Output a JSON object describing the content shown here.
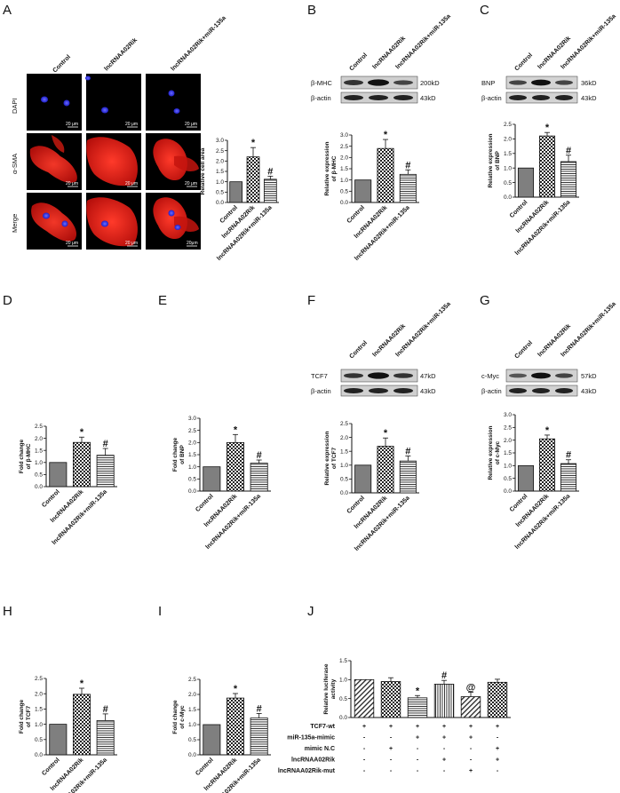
{
  "panels": {
    "A": "A",
    "B": "B",
    "C": "C",
    "D": "D",
    "E": "E",
    "F": "F",
    "G": "G",
    "H": "H",
    "I": "I",
    "J": "J"
  },
  "groups": [
    "Control",
    "lncRNAA02Rik",
    "lncRNAA02Rik+miR-135a"
  ],
  "micro": {
    "rows": [
      "DAPI",
      "α-SMA",
      "Merge"
    ],
    "scale_bar": "20 μm",
    "scale_bar_alt": "20μm"
  },
  "blots": {
    "B": {
      "target": "β-MHC",
      "target_kd": "200kD",
      "actin": "β-actin",
      "actin_kd": "43kD"
    },
    "C": {
      "target": "BNP",
      "target_kd": "36kD",
      "actin": "β-actin",
      "actin_kd": "43kD"
    },
    "F": {
      "target": "TCF7",
      "target_kd": "47kD",
      "actin": "β-actin",
      "actin_kd": "43kD"
    },
    "G": {
      "target": "c-Myc",
      "target_kd": "57kD",
      "actin": "β-actin",
      "actin_kd": "43kD"
    }
  },
  "chart_data": [
    {
      "panel": "A",
      "type": "bar",
      "categories": [
        "Control",
        "lncRNAA02Rik",
        "lncRNAA02Rik+miR-135a"
      ],
      "values": [
        1.0,
        2.2,
        1.12
      ],
      "errors": [
        0,
        0.45,
        0.15
      ],
      "ylabel": "Relative cell area",
      "ylim": [
        0,
        3.0
      ],
      "yticks": [
        "0.0",
        "0.5",
        "1.0",
        "1.5",
        "2.0",
        "2.5",
        "3.0"
      ],
      "marks": [
        "",
        "*",
        "#"
      ]
    },
    {
      "panel": "B",
      "type": "bar",
      "categories": [
        "Control",
        "lncRNAA02Rik",
        "lncRNAA02Rik+miR-135a"
      ],
      "values": [
        1.0,
        2.4,
        1.25
      ],
      "errors": [
        0,
        0.4,
        0.2
      ],
      "ylabel": "Relative expression of β-MHC",
      "ylim": [
        0,
        3.0
      ],
      "yticks": [
        "0.0",
        "0.5",
        "1.0",
        "1.5",
        "2.0",
        "2.5",
        "3.0"
      ],
      "marks": [
        "",
        "*",
        "#"
      ]
    },
    {
      "panel": "C",
      "type": "bar",
      "categories": [
        "Control",
        "lncRNAA02Rik",
        "lncRNAA02Rik+miR-135a"
      ],
      "values": [
        1.0,
        2.1,
        1.22
      ],
      "errors": [
        0,
        0.12,
        0.22
      ],
      "ylabel": "Relative expression of BNP",
      "ylim": [
        0,
        2.5
      ],
      "yticks": [
        "0.0",
        "0.5",
        "1.0",
        "1.5",
        "2.0",
        "2.5"
      ],
      "marks": [
        "",
        "*",
        "#"
      ]
    },
    {
      "panel": "D",
      "type": "bar",
      "categories": [
        "Control",
        "lncRNAA02Rik",
        "lncRNAA02Rik+miR-135a"
      ],
      "values": [
        1.0,
        1.83,
        1.3
      ],
      "errors": [
        0,
        0.22,
        0.28
      ],
      "ylabel": "Fold change of β-MHC",
      "ylim": [
        0,
        2.5
      ],
      "yticks": [
        "0.0",
        "0.5",
        "1.0",
        "1.5",
        "2.0",
        "2.5"
      ],
      "marks": [
        "",
        "*",
        "#"
      ]
    },
    {
      "panel": "E",
      "type": "bar",
      "categories": [
        "Control",
        "lncRNAA02Rik",
        "lncRNAA02Rik+miR-135a"
      ],
      "values": [
        1.0,
        2.0,
        1.15
      ],
      "errors": [
        0,
        0.33,
        0.13
      ],
      "ylabel": "Fold change of BNP",
      "ylim": [
        0,
        3.0
      ],
      "yticks": [
        "0.0",
        "0.5",
        "1.0",
        "1.5",
        "2.0",
        "2.5",
        "3.0"
      ],
      "marks": [
        "",
        "*",
        "#"
      ]
    },
    {
      "panel": "F",
      "type": "bar",
      "categories": [
        "Control",
        "lncRNAA02Rik",
        "lncRNAA02Rik+miR-135a"
      ],
      "values": [
        1.0,
        1.68,
        1.15
      ],
      "errors": [
        0,
        0.3,
        0.18
      ],
      "ylabel": "Relative expression of TCF7",
      "ylim": [
        0,
        2.5
      ],
      "yticks": [
        "0.0",
        "0.5",
        "1.0",
        "1.5",
        "2.0",
        "2.5"
      ],
      "marks": [
        "",
        "*",
        "#"
      ]
    },
    {
      "panel": "G",
      "type": "bar",
      "categories": [
        "Control",
        "lncRNAA02Rik",
        "lncRNAA02Rik+miR-135a"
      ],
      "values": [
        1.0,
        2.05,
        1.08
      ],
      "errors": [
        0,
        0.15,
        0.15
      ],
      "ylabel": "Relative expression of c-Myc",
      "ylim": [
        0,
        3.0
      ],
      "yticks": [
        "0.0",
        "0.5",
        "1.0",
        "1.5",
        "2.0",
        "2.5",
        "3.0"
      ],
      "marks": [
        "",
        "*",
        "#"
      ]
    },
    {
      "panel": "H",
      "type": "bar",
      "categories": [
        "Control",
        "lncRNAA02Rik",
        "lncRNAA02Rik+miR-135a"
      ],
      "values": [
        1.0,
        1.98,
        1.12
      ],
      "errors": [
        0,
        0.2,
        0.22
      ],
      "ylabel": "Fold change of TCF7",
      "ylim": [
        0,
        2.5
      ],
      "yticks": [
        "0.0",
        "0.5",
        "1.0",
        "1.5",
        "2.0",
        "2.5"
      ],
      "marks": [
        "",
        "*",
        "#"
      ]
    },
    {
      "panel": "I",
      "type": "bar",
      "categories": [
        "Control",
        "lncRNAA02Rik",
        "lncRNAA02Rik+miR-135a"
      ],
      "values": [
        1.0,
        1.88,
        1.22
      ],
      "errors": [
        0,
        0.15,
        0.15
      ],
      "ylabel": "Fold change of c-Myc",
      "ylim": [
        0,
        2.5
      ],
      "yticks": [
        "0.0",
        "0.5",
        "1.0",
        "1.5",
        "2.0",
        "2.5"
      ],
      "marks": [
        "",
        "*",
        "#"
      ]
    },
    {
      "panel": "J",
      "type": "bar",
      "categories": [
        "1",
        "2",
        "3",
        "4",
        "5",
        "6"
      ],
      "values": [
        1.0,
        0.95,
        0.52,
        0.88,
        0.55,
        0.93
      ],
      "errors": [
        0,
        0.1,
        0.06,
        0.1,
        0.12,
        0.08
      ],
      "ylabel": "Relative luciferase activity",
      "ylim": [
        0,
        1.5
      ],
      "yticks": [
        "0.0",
        "0.5",
        "1.0",
        "1.5"
      ],
      "marks": [
        "",
        "",
        "*",
        "#",
        "@",
        ""
      ],
      "conditions": [
        {
          "label": "TCF7-wt",
          "signs": [
            "+",
            "+",
            "+",
            "+",
            "+",
            "+"
          ]
        },
        {
          "label": "miR-135a-mimic",
          "signs": [
            "-",
            "-",
            "+",
            "+",
            "+",
            "-"
          ]
        },
        {
          "label": "mimic N.C",
          "signs": [
            "-",
            "+",
            "-",
            "-",
            "-",
            "+"
          ]
        },
        {
          "label": "lncRNAA02Rik",
          "signs": [
            "-",
            "-",
            "-",
            "+",
            "-",
            "+"
          ]
        },
        {
          "label": "lncRNAA02Rik-mut",
          "signs": [
            "-",
            "-",
            "-",
            "-",
            "+",
            "-"
          ]
        }
      ]
    }
  ]
}
